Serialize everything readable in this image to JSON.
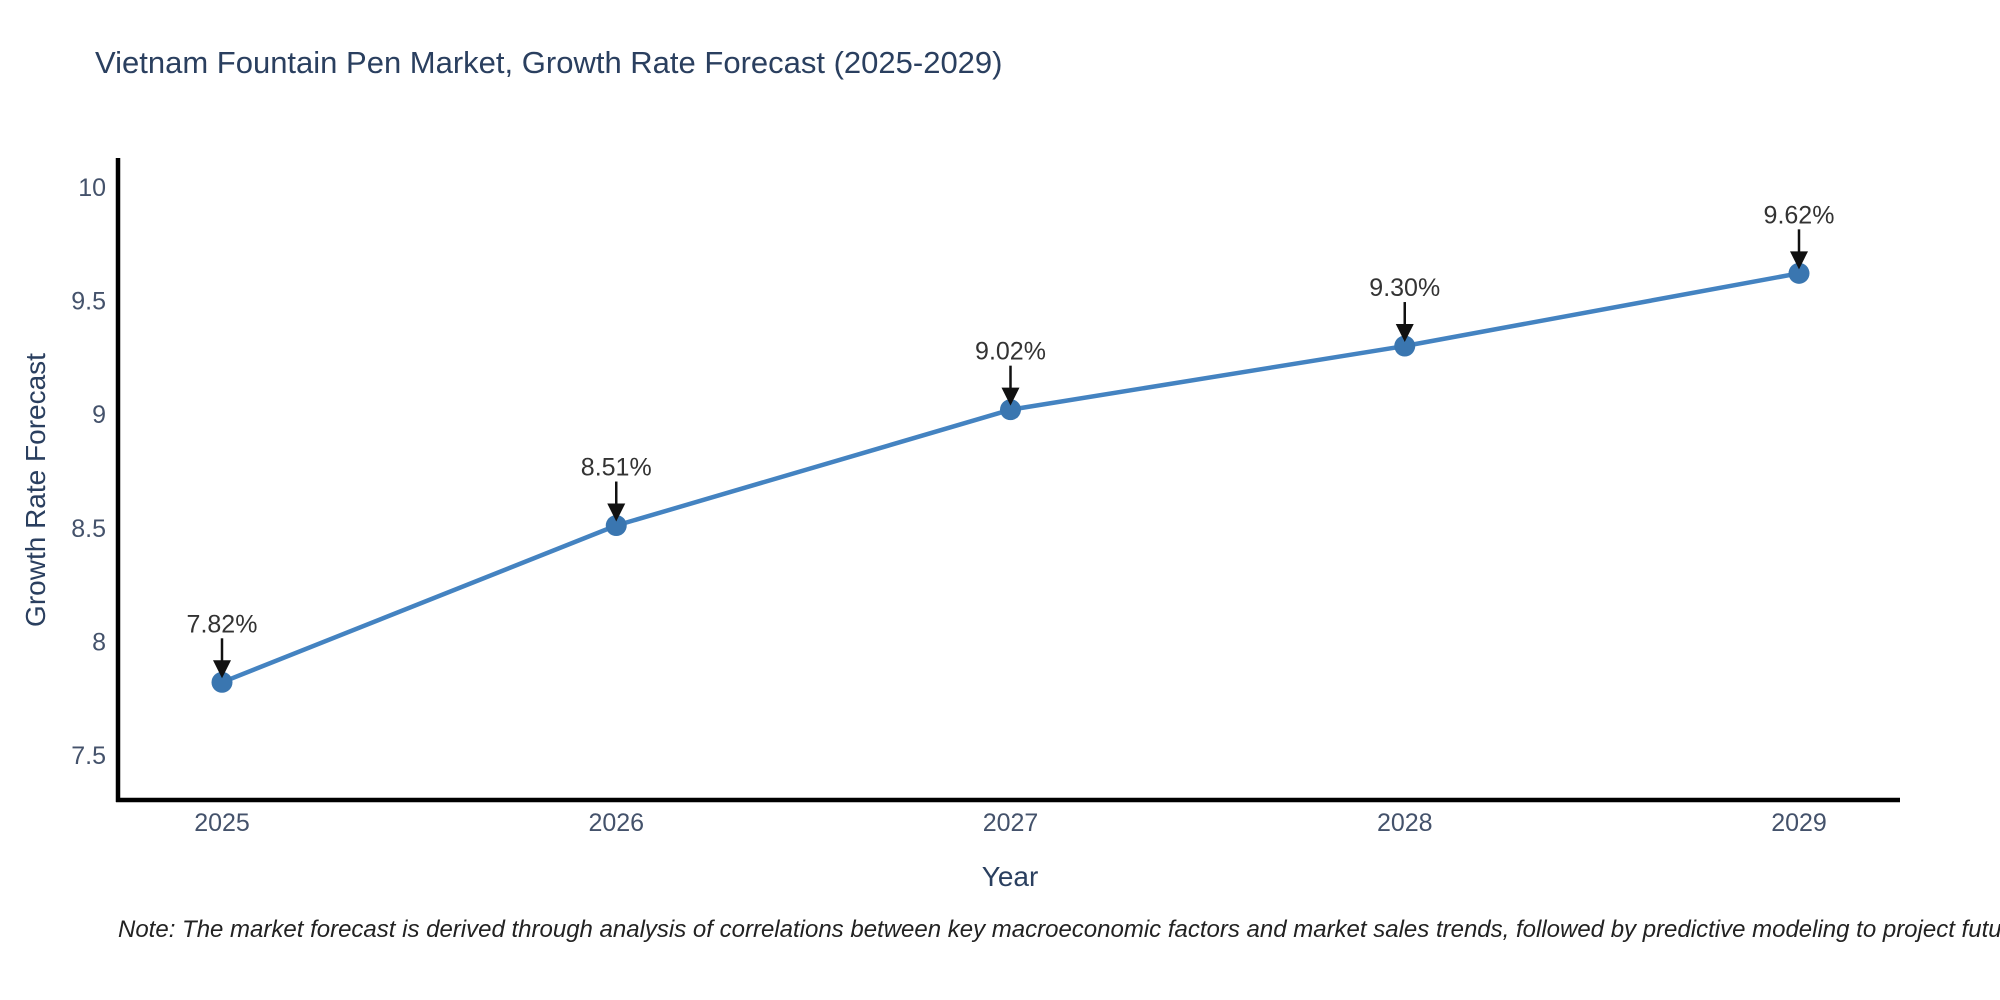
{
  "header": {
    "title": "Vietnam Fountain Pen Market, Growth Rate Forecast (2025-2029)"
  },
  "chart_data": {
    "type": "line",
    "title": "Vietnam Fountain Pen Market, Growth Rate Forecast (2025-2029)",
    "categories": [
      "2025",
      "2026",
      "2027",
      "2028",
      "2029"
    ],
    "values": [
      7.82,
      8.51,
      9.02,
      9.3,
      9.62
    ],
    "point_labels": [
      "7.82%",
      "8.51%",
      "9.02%",
      "9.30%",
      "9.62%"
    ],
    "xlabel": "Year",
    "ylabel": "Growth Rate Forecast",
    "ytick_labels": [
      "10",
      "9.5",
      "9",
      "8.5",
      "8",
      "7.5"
    ],
    "ytick_values": [
      10,
      9.5,
      9,
      8.5,
      8,
      7.5
    ],
    "ylim": [
      7.3,
      10.12
    ],
    "grid": false,
    "legend": "none",
    "colors": {
      "line": "#4483c1",
      "marker": "#3a76b0",
      "arrow": "#111111",
      "axis": "#000000",
      "title_text": "#2a3f5f",
      "tick_text": "#44526b",
      "annotation_text": "#333333",
      "note_text": "#222222"
    }
  },
  "footer": {
    "note": "Note: The market forecast is derived through analysis of correlations between key macroeconomic factors and market sales trends, followed by predictive modeling to project future sales"
  }
}
